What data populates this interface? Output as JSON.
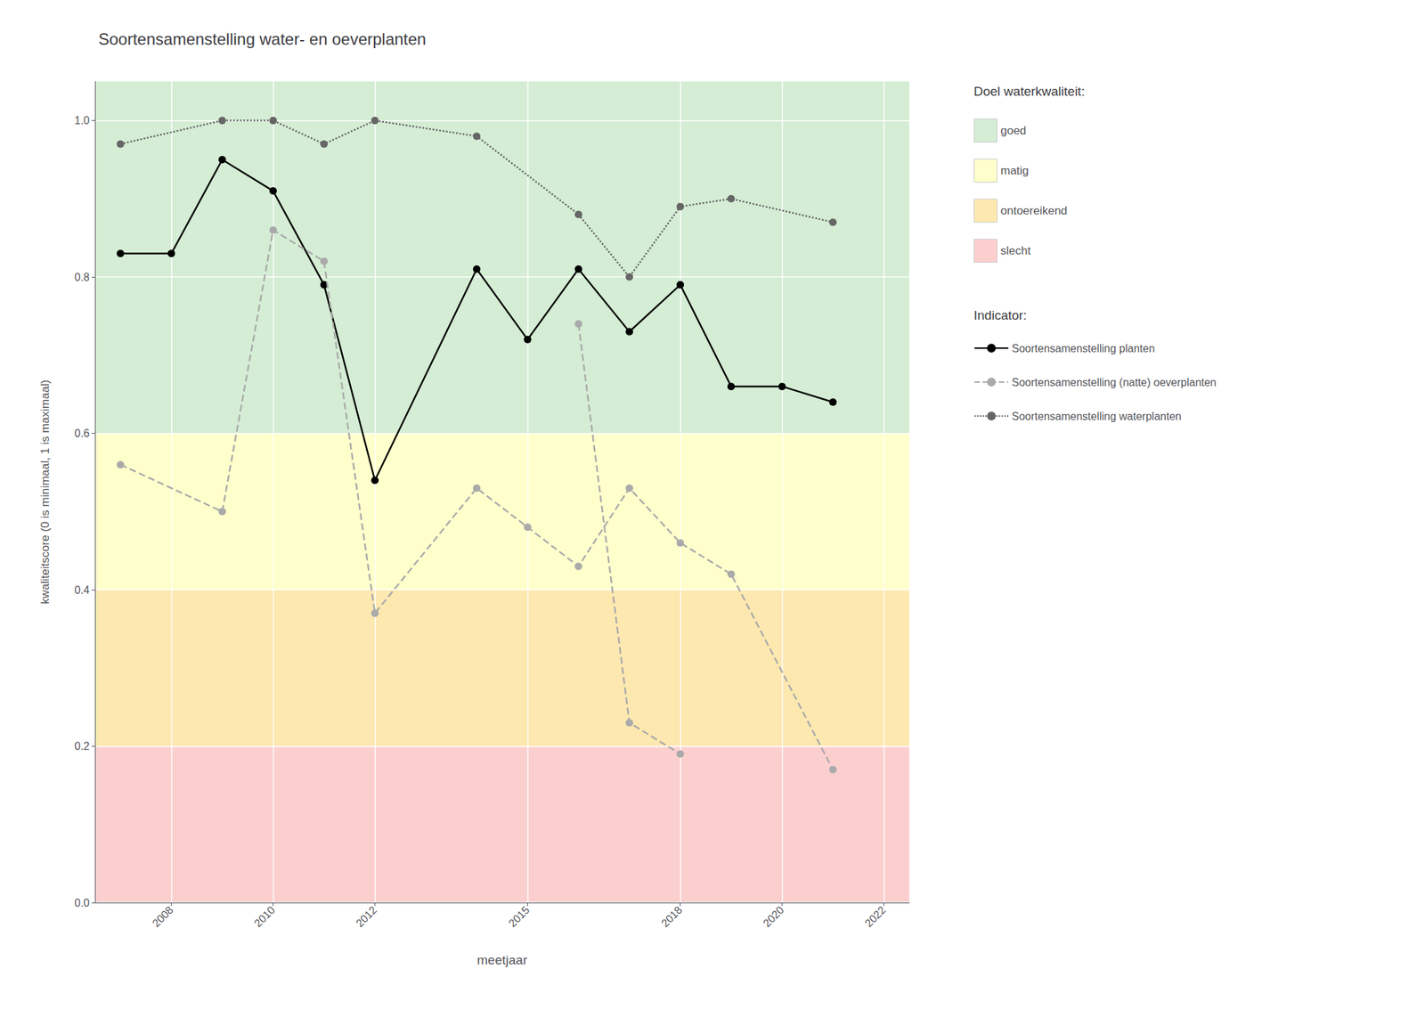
{
  "chart_data": {
    "type": "line",
    "title": "Soortensamenstelling water- en oeverplanten",
    "xlabel": "meetjaar",
    "ylabel": "kwaliteitscore (0 is minimaal, 1 is maximaal)",
    "xlim": [
      2006.5,
      2022.5
    ],
    "xticks": [
      2008,
      2010,
      2012,
      2015,
      2018,
      2020,
      2022
    ],
    "ylim": [
      0.0,
      1.05
    ],
    "yticks": [
      {
        "value": 0,
        "label": "0.0"
      },
      0.2,
      0.4,
      0.6,
      0.8,
      {
        "value": 1,
        "label": "1.0"
      }
    ],
    "grid": true,
    "bands_title": "Doel waterkwaliteit:",
    "bands": [
      {
        "name": "goed",
        "ymin": 0.6,
        "ymax": 1.05,
        "color": "#d4edd4"
      },
      {
        "name": "matig",
        "ymin": 0.4,
        "ymax": 0.6,
        "color": "#ffffcc"
      },
      {
        "name": "ontoereikend",
        "ymin": 0.2,
        "ymax": 0.4,
        "color": "#fde8b0"
      },
      {
        "name": "slecht",
        "ymin": 0.0,
        "ymax": 0.2,
        "color": "#fccfcf"
      }
    ],
    "series_title": "Indicator:",
    "series": [
      {
        "name": "Soortensamenstelling planten",
        "color": "#000000",
        "line_style": "solid",
        "marker": "circle",
        "x": [
          2007,
          2008,
          2009,
          2010,
          2011,
          2012,
          2014,
          2015,
          2016,
          2017,
          2018,
          2019,
          2020,
          2021
        ],
        "values": [
          0.83,
          0.83,
          0.95,
          0.91,
          0.79,
          0.54,
          0.81,
          0.72,
          0.81,
          0.73,
          0.79,
          0.66,
          0.66,
          0.64
        ]
      },
      {
        "name": "Soortensamenstelling (natte) oeverplanten",
        "color": "#aaaaaa",
        "line_style": "dashed",
        "marker": "circle",
        "x": [
          2007,
          2009,
          2010,
          2011,
          2012,
          2014,
          2015,
          2016,
          2017,
          2018,
          2019,
          2021
        ],
        "values": [
          0.56,
          0.5,
          0.86,
          0.82,
          0.37,
          0.53,
          0.48,
          0.43,
          0.53,
          0.46,
          0.42,
          0.17
        ]
      },
      {
        "color": "#aaaaaa",
        "line_style": "dashed",
        "marker": "circle",
        "x": [
          2016,
          2017,
          2018
        ],
        "values": [
          0.74,
          0.23,
          0.19
        ]
      },
      {
        "name": "Soortensamenstelling waterplanten",
        "color": "#666666",
        "line_style": "dotted",
        "marker": "circle",
        "x": [
          2007,
          2009,
          2010,
          2011,
          2012,
          2014,
          2016,
          2017,
          2018,
          2019,
          2021
        ],
        "values": [
          0.97,
          1.0,
          1.0,
          0.97,
          1.0,
          0.98,
          0.88,
          0.8,
          0.89,
          0.9,
          0.87
        ]
      }
    ]
  }
}
